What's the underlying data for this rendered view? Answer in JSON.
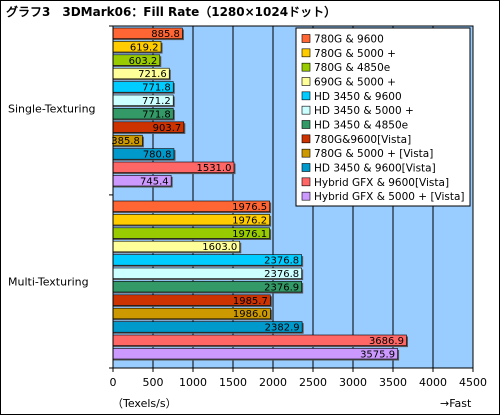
{
  "chart_data": {
    "type": "bar",
    "orientation": "horizontal",
    "title": "グラフ3　3DMark06：Fill Rate（1280×1024ドット）",
    "categories": [
      "Single-Texturing",
      "Multi-Texturing"
    ],
    "series": [
      {
        "name": "780G & 9600",
        "color": "#ff6633",
        "values": [
          885.8,
          1976.5
        ]
      },
      {
        "name": "780G & 5000 +",
        "color": "#ffcc00",
        "values": [
          619.2,
          1976.2
        ]
      },
      {
        "name": "780G & 4850e",
        "color": "#99cc00",
        "values": [
          603.2,
          1976.1
        ]
      },
      {
        "name": "690G & 5000 +",
        "color": "#ffff99",
        "values": [
          721.6,
          1603.0
        ]
      },
      {
        "name": "HD 3450 & 9600",
        "color": "#00ccff",
        "values": [
          771.8,
          2376.8
        ]
      },
      {
        "name": "HD 3450 & 5000 +",
        "color": "#ccffff",
        "values": [
          771.2,
          2376.8
        ]
      },
      {
        "name": "HD 3450 & 4850e",
        "color": "#339966",
        "values": [
          771.8,
          2376.9
        ]
      },
      {
        "name": "780G&9600[Vista]",
        "color": "#cc3300",
        "values": [
          903.7,
          1985.7
        ]
      },
      {
        "name": "780G & 5000 + [Vista]",
        "color": "#cc9900",
        "values": [
          385.8,
          1986.0
        ]
      },
      {
        "name": "HD 3450 & 9600[Vista]",
        "color": "#0099cc",
        "values": [
          780.8,
          2382.9
        ]
      },
      {
        "name": "Hybrid GFX & 9600[Vista]",
        "color": "#ff6666",
        "values": [
          1531.0,
          3686.9
        ]
      },
      {
        "name": "Hybrid GFX & 5000 + [Vista]",
        "color": "#cc99ff",
        "values": [
          745.4,
          3575.9
        ]
      }
    ],
    "xlim": [
      0,
      4500
    ],
    "xticks": [
      0,
      500,
      1000,
      1500,
      2000,
      2500,
      3000,
      3500,
      4000,
      4500
    ],
    "xlabel": "（Texels/s）",
    "direction_note": "→Fast",
    "grid": true,
    "legend_position": "top-right",
    "plot_background": "#99ccff"
  }
}
